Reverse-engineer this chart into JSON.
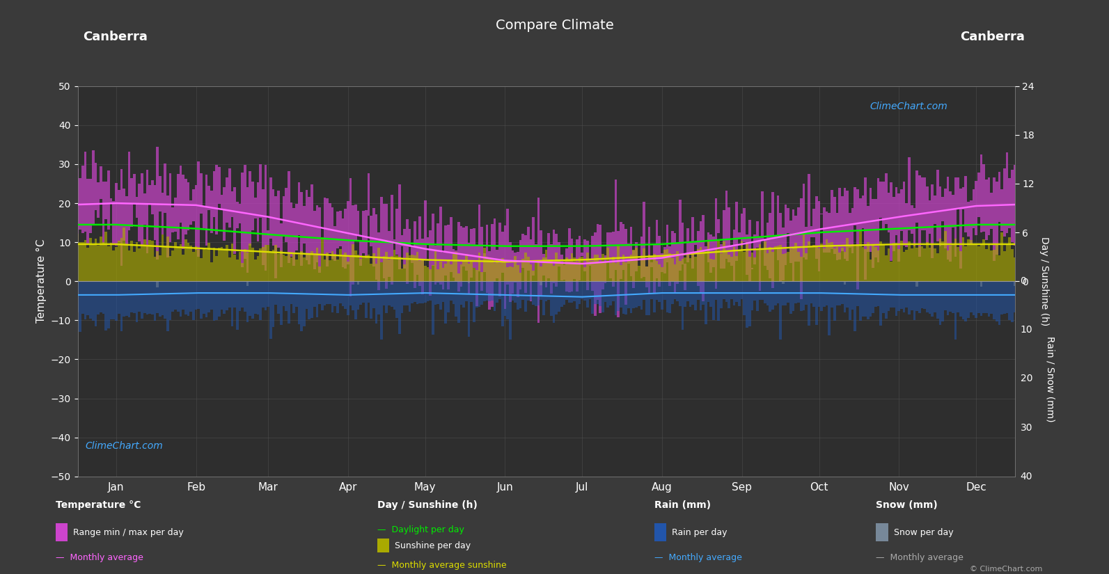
{
  "title": "Compare Climate",
  "city_left": "Canberra",
  "city_right": "Canberra",
  "background_color": "#3a3a3a",
  "plot_bg_color": "#2e2e2e",
  "grid_color": "#555555",
  "text_color": "#ffffff",
  "months": [
    "Jan",
    "Feb",
    "Mar",
    "Apr",
    "May",
    "Jun",
    "Jul",
    "Aug",
    "Sep",
    "Oct",
    "Nov",
    "Dec"
  ],
  "days_in_year": 365,
  "ylim_left": [
    -50,
    50
  ],
  "temp_max_monthly": [
    27.5,
    26.5,
    23.5,
    19.0,
    14.5,
    11.0,
    10.0,
    11.5,
    15.5,
    19.5,
    23.0,
    26.5
  ],
  "temp_min_monthly": [
    12.5,
    12.5,
    9.5,
    5.5,
    2.0,
    -0.5,
    -1.0,
    0.5,
    3.5,
    7.0,
    10.0,
    12.0
  ],
  "temp_avg_monthly": [
    20.0,
    19.5,
    16.5,
    12.3,
    8.3,
    5.3,
    4.5,
    6.0,
    9.5,
    13.3,
    16.5,
    19.3
  ],
  "daylight_monthly": [
    14.5,
    13.5,
    12.0,
    10.5,
    9.5,
    9.0,
    9.0,
    9.5,
    11.0,
    12.5,
    13.5,
    14.5
  ],
  "sunshine_monthly": [
    9.5,
    8.5,
    7.5,
    6.5,
    5.5,
    5.0,
    5.5,
    6.5,
    8.0,
    9.0,
    9.5,
    9.5
  ],
  "rain_daily_max": [
    8.0,
    7.0,
    6.0,
    5.5,
    5.0,
    4.5,
    4.5,
    4.5,
    4.5,
    5.5,
    6.5,
    8.0
  ],
  "rain_monthly_avg": [
    -3.5,
    -3.0,
    -3.0,
    -3.5,
    -3.0,
    -3.5,
    -4.0,
    -3.0,
    -3.0,
    -3.0,
    -3.5,
    -3.5
  ],
  "copyright_text": "© ClimeChart.com",
  "colors": {
    "temp_range_bar": "#cc44cc",
    "sunshine_bar": "#aaaa00",
    "rain_bar": "#2255aa",
    "snow_bar": "#778899",
    "daylight_line": "#00ee00",
    "sunshine_avg_line": "#dddd00",
    "temp_avg_line": "#ff66ff",
    "rain_avg_line": "#44aaff",
    "snow_avg_line": "#aaaaaa"
  }
}
